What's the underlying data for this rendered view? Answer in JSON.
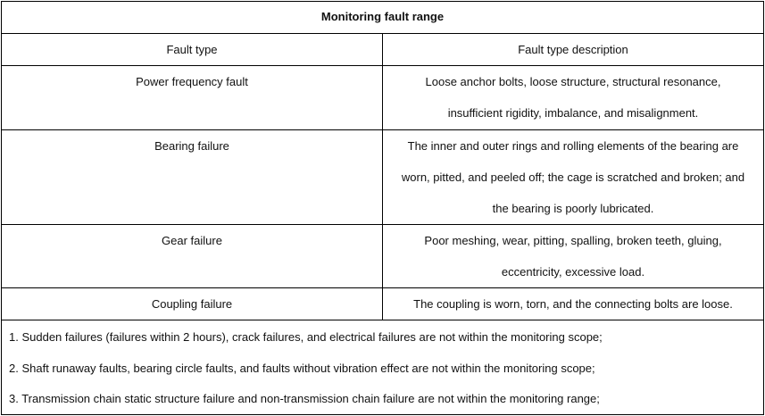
{
  "table": {
    "title": "Monitoring fault range",
    "headers": [
      "Fault type",
      "Fault type description"
    ],
    "rows": [
      {
        "type": "Power frequency fault",
        "description": [
          "Loose anchor bolts, loose structure, structural resonance,",
          "insufficient rigidity, imbalance, and misalignment."
        ]
      },
      {
        "type": "Bearing failure",
        "description": [
          "The inner and outer rings and rolling elements of the bearing are",
          "worn, pitted, and peeled off; the cage is scratched and broken; and",
          "the bearing is poorly lubricated."
        ]
      },
      {
        "type": "Gear failure",
        "description": [
          "Poor meshing, wear, pitting, spalling, broken teeth, gluing,",
          "eccentricity, excessive load."
        ]
      },
      {
        "type": "Coupling failure",
        "description": [
          "The coupling is worn, torn, and the connecting bolts are loose."
        ]
      }
    ],
    "notes": [
      "1. Sudden failures (failures within 2 hours), crack failures, and electrical failures are not within the monitoring scope;",
      "2. Shaft runaway faults, bearing circle faults, and faults without vibration effect are not within the monitoring scope;",
      "3. Transmission chain static structure failure and non-transmission chain failure are not within the monitoring range;"
    ]
  }
}
